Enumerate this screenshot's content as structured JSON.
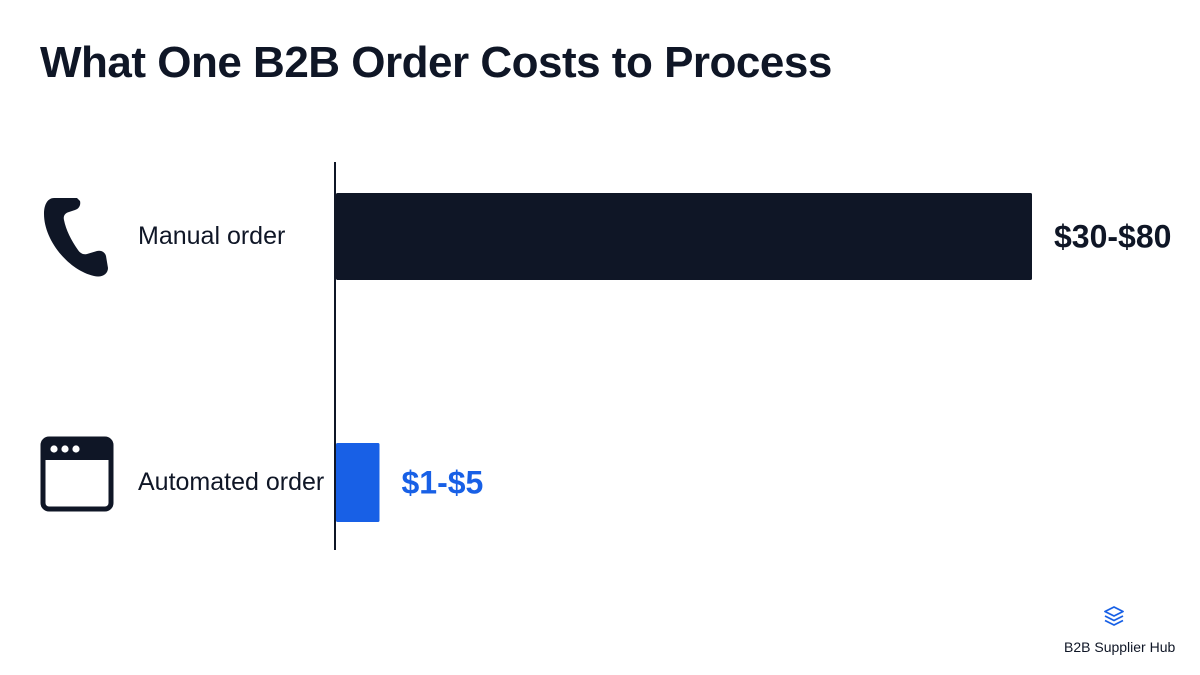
{
  "title": "What One B2B Order Costs to Process",
  "brand": {
    "name": "B2B Supplier Hub",
    "icon": "stacked-layers-icon"
  },
  "colors": {
    "manual": "#0f1626",
    "automated": "#1860e6",
    "text": "#0f1626"
  },
  "chart_data": {
    "type": "bar",
    "orientation": "horizontal",
    "categories": [
      "Manual order",
      "Automated order"
    ],
    "category_icons": [
      "phone-icon",
      "browser-window-icon"
    ],
    "ranges": [
      [
        30,
        80
      ],
      [
        1,
        5
      ]
    ],
    "values": [
      80,
      5
    ],
    "value_labels": [
      "$30-$80",
      "$1-$5"
    ],
    "xlim": [
      0,
      80
    ],
    "grid": false,
    "legend": "none",
    "title": "What One B2B Order Costs to Process"
  }
}
